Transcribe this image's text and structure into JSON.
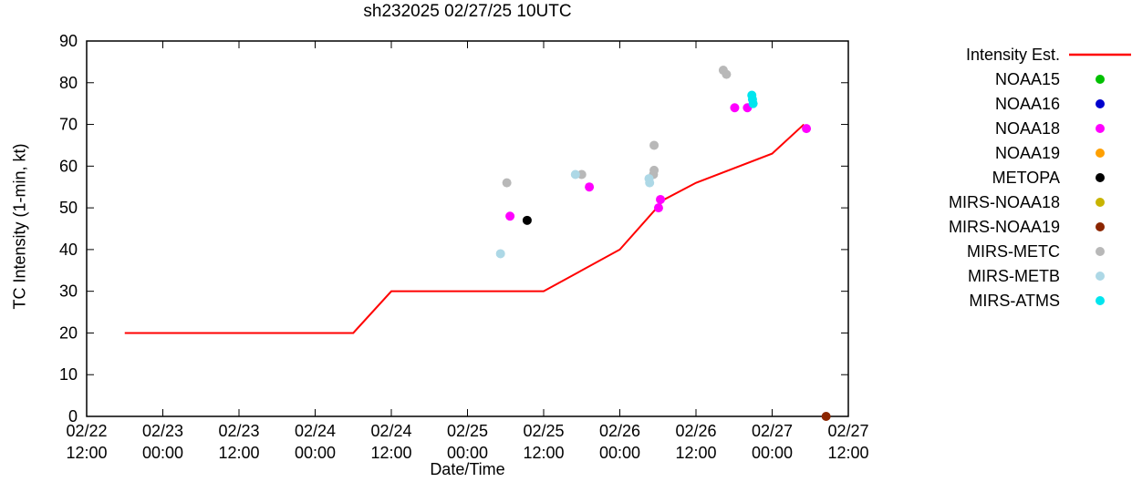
{
  "chart_data": {
    "type": "line",
    "title": "sh232025 02/27/25 10UTC",
    "xlabel": "Date/Time",
    "ylabel": "TC Intensity (1-min, kt)",
    "ylim": [
      0,
      90
    ],
    "ytick_interval": 10,
    "grid": false,
    "legend_position": "right-outside",
    "x_axis": {
      "start_label": "02/22 12:00",
      "end_label": "02/27 12:00",
      "hours_span": 120,
      "tick_every_hours": 12,
      "tick_labels": [
        [
          "02/22",
          "12:00"
        ],
        [
          "02/23",
          "00:00"
        ],
        [
          "02/23",
          "12:00"
        ],
        [
          "02/24",
          "00:00"
        ],
        [
          "02/24",
          "12:00"
        ],
        [
          "02/25",
          "00:00"
        ],
        [
          "02/25",
          "12:00"
        ],
        [
          "02/26",
          "00:00"
        ],
        [
          "02/26",
          "12:00"
        ],
        [
          "02/27",
          "00:00"
        ],
        [
          "02/27",
          "12:00"
        ]
      ]
    },
    "intensity_line": {
      "name": "Intensity Est.",
      "color": "#ff0000",
      "points_h_kt": [
        [
          6,
          20
        ],
        [
          42,
          20
        ],
        [
          48,
          30
        ],
        [
          72,
          30
        ],
        [
          84,
          40
        ],
        [
          91,
          52
        ],
        [
          96,
          56
        ],
        [
          108,
          63
        ],
        [
          113,
          70
        ]
      ]
    },
    "series": [
      {
        "name": "NOAA15",
        "color": "#00c000",
        "points_h_kt": []
      },
      {
        "name": "NOAA16",
        "color": "#0000cd",
        "points_h_kt": []
      },
      {
        "name": "NOAA18",
        "color": "#ff00ff",
        "points_h_kt": [
          [
            66.7,
            48
          ],
          [
            79.2,
            55
          ],
          [
            90.1,
            50
          ],
          [
            90.4,
            52
          ],
          [
            102.1,
            74
          ],
          [
            104.1,
            74
          ],
          [
            113.4,
            69
          ]
        ]
      },
      {
        "name": "NOAA19",
        "color": "#ffa000",
        "points_h_kt": []
      },
      {
        "name": "METOPA",
        "color": "#000000",
        "points_h_kt": [
          [
            69.4,
            47
          ]
        ]
      },
      {
        "name": "MIRS-NOAA18",
        "color": "#c8b400",
        "points_h_kt": []
      },
      {
        "name": "MIRS-NOAA19",
        "color": "#8b2500",
        "points_h_kt": [
          [
            116.5,
            0
          ]
        ]
      },
      {
        "name": "MIRS-METC",
        "color": "#b8b8b8",
        "points_h_kt": [
          [
            66.2,
            56
          ],
          [
            78,
            58
          ],
          [
            89.3,
            58
          ],
          [
            89.4,
            59
          ],
          [
            89.4,
            65
          ],
          [
            100.3,
            83
          ],
          [
            100.8,
            82
          ]
        ]
      },
      {
        "name": "MIRS-METB",
        "color": "#add8e6",
        "points_h_kt": [
          [
            65.2,
            39
          ],
          [
            77,
            58
          ],
          [
            88.6,
            57
          ],
          [
            88.7,
            56
          ]
        ]
      },
      {
        "name": "MIRS-ATMS",
        "color": "#00e5ee",
        "points_h_kt": [
          [
            104.8,
            77
          ],
          [
            104.9,
            76
          ],
          [
            105,
            75
          ]
        ]
      }
    ]
  }
}
